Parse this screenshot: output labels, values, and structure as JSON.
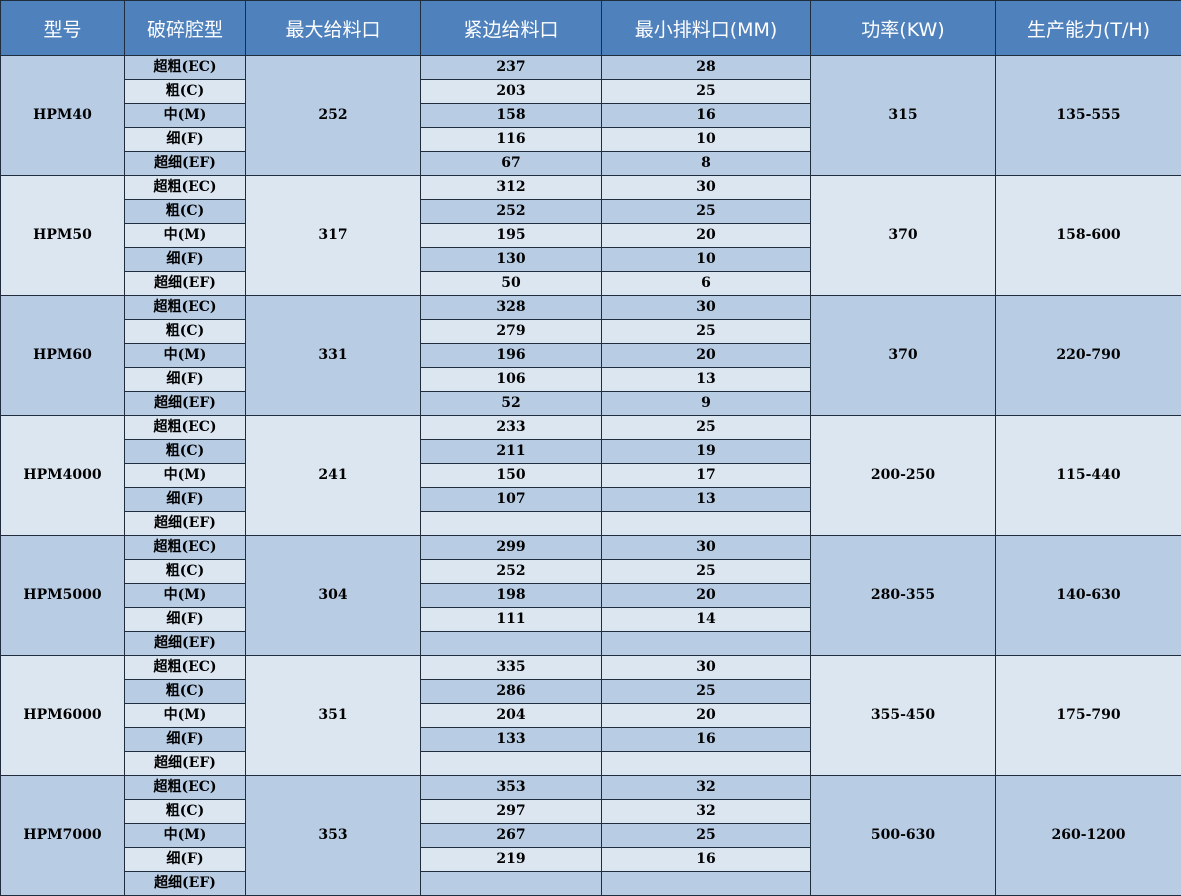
{
  "headers": [
    "型号",
    "破碎腔型",
    "最大给料口",
    "紧边给料口",
    "最小排料口(MM)",
    "功率(KW)",
    "生产能力(T/H)"
  ],
  "cavities": [
    "超粗(EC)",
    "粗(C)",
    "中(M)",
    "细(F)",
    "超细(EF)"
  ],
  "colors": {
    "header": "#4f81bd",
    "row_dark": "#b8cce4",
    "row_light": "#dce6f1"
  },
  "models": [
    {
      "model": "HPM40",
      "max_feed": "252",
      "closed_feed": [
        "237",
        "203",
        "158",
        "116",
        "67"
      ],
      "min_discharge": [
        "28",
        "25",
        "16",
        "10",
        "8"
      ],
      "power": "315",
      "capacity": "135-555"
    },
    {
      "model": "HPM50",
      "max_feed": "317",
      "closed_feed": [
        "312",
        "252",
        "195",
        "130",
        "50"
      ],
      "min_discharge": [
        "30",
        "25",
        "20",
        "10",
        "6"
      ],
      "power": "370",
      "capacity": "158-600"
    },
    {
      "model": "HPM60",
      "max_feed": "331",
      "closed_feed": [
        "328",
        "279",
        "196",
        "106",
        "52"
      ],
      "min_discharge": [
        "30",
        "25",
        "20",
        "13",
        "9"
      ],
      "power": "370",
      "capacity": "220-790"
    },
    {
      "model": "HPM4000",
      "max_feed": "241",
      "closed_feed": [
        "233",
        "211",
        "150",
        "107",
        ""
      ],
      "min_discharge": [
        "25",
        "19",
        "17",
        "13",
        ""
      ],
      "power": "200-250",
      "capacity": "115-440"
    },
    {
      "model": "HPM5000",
      "max_feed": "304",
      "closed_feed": [
        "299",
        "252",
        "198",
        "111",
        ""
      ],
      "min_discharge": [
        "30",
        "25",
        "20",
        "14",
        ""
      ],
      "power": "280-355",
      "capacity": "140-630"
    },
    {
      "model": "HPM6000",
      "max_feed": "351",
      "closed_feed": [
        "335",
        "286",
        "204",
        "133",
        ""
      ],
      "min_discharge": [
        "30",
        "25",
        "20",
        "16",
        ""
      ],
      "power": "355-450",
      "capacity": "175-790"
    },
    {
      "model": "HPM7000",
      "max_feed": "353",
      "closed_feed": [
        "353",
        "297",
        "267",
        "219",
        ""
      ],
      "min_discharge": [
        "32",
        "32",
        "25",
        "16",
        ""
      ],
      "power": "500-630",
      "capacity": "260-1200"
    }
  ]
}
